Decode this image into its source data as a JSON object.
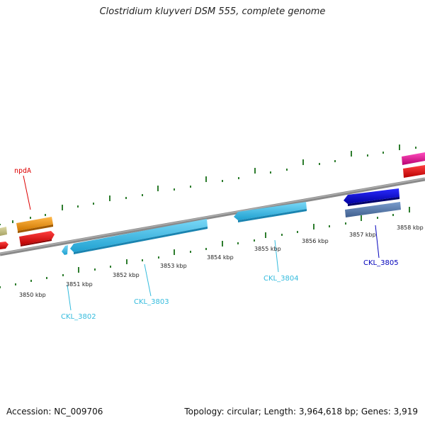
{
  "title": "Clostridium kluyveri DSM 555, complete genome",
  "footer": {
    "accession": "Accession: NC_009706",
    "topology": "Topology: circular; Length: 3,964,618 bp; Genes: 3,919"
  },
  "scale": {
    "unit": "kbp",
    "labels": [
      {
        "kbp": 3850,
        "text": "3850 kbp"
      },
      {
        "kbp": 3851,
        "text": "3851 kbp"
      },
      {
        "kbp": 3852,
        "text": "3852 kbp"
      },
      {
        "kbp": 3853,
        "text": "3853 kbp"
      },
      {
        "kbp": 3854,
        "text": "3854 kbp"
      },
      {
        "kbp": 3855,
        "text": "3855 kbp"
      },
      {
        "kbp": 3856,
        "text": "3856 kbp"
      },
      {
        "kbp": 3857,
        "text": "3857 kbp"
      },
      {
        "kbp": 3858,
        "text": "3858 kbp"
      }
    ]
  },
  "gene_labels": [
    {
      "id": "npdA",
      "text": "npdA",
      "color": "#dd0000"
    },
    {
      "id": "CKL_3802",
      "text": "CKL_3802",
      "color": "#33bbdd"
    },
    {
      "id": "CKL_3803",
      "text": "CKL_3803",
      "color": "#33bbdd"
    },
    {
      "id": "CKL_3804",
      "text": "CKL_3804",
      "color": "#33bbdd"
    },
    {
      "id": "CKL_3805",
      "text": "CKL_3805",
      "color": "#0000bb"
    }
  ],
  "colors": {
    "backbone": "#8a8a8a",
    "ticks": "#2e7d2e",
    "cds_light_blue": "#4cc8f0",
    "cds_dark_blue": "#1010dd",
    "steel_blue": "#5a7fb0",
    "orange": "#f39a1b",
    "red": "#ee1111",
    "magenta": "#e5169a",
    "khaki": "#c9c48a"
  }
}
